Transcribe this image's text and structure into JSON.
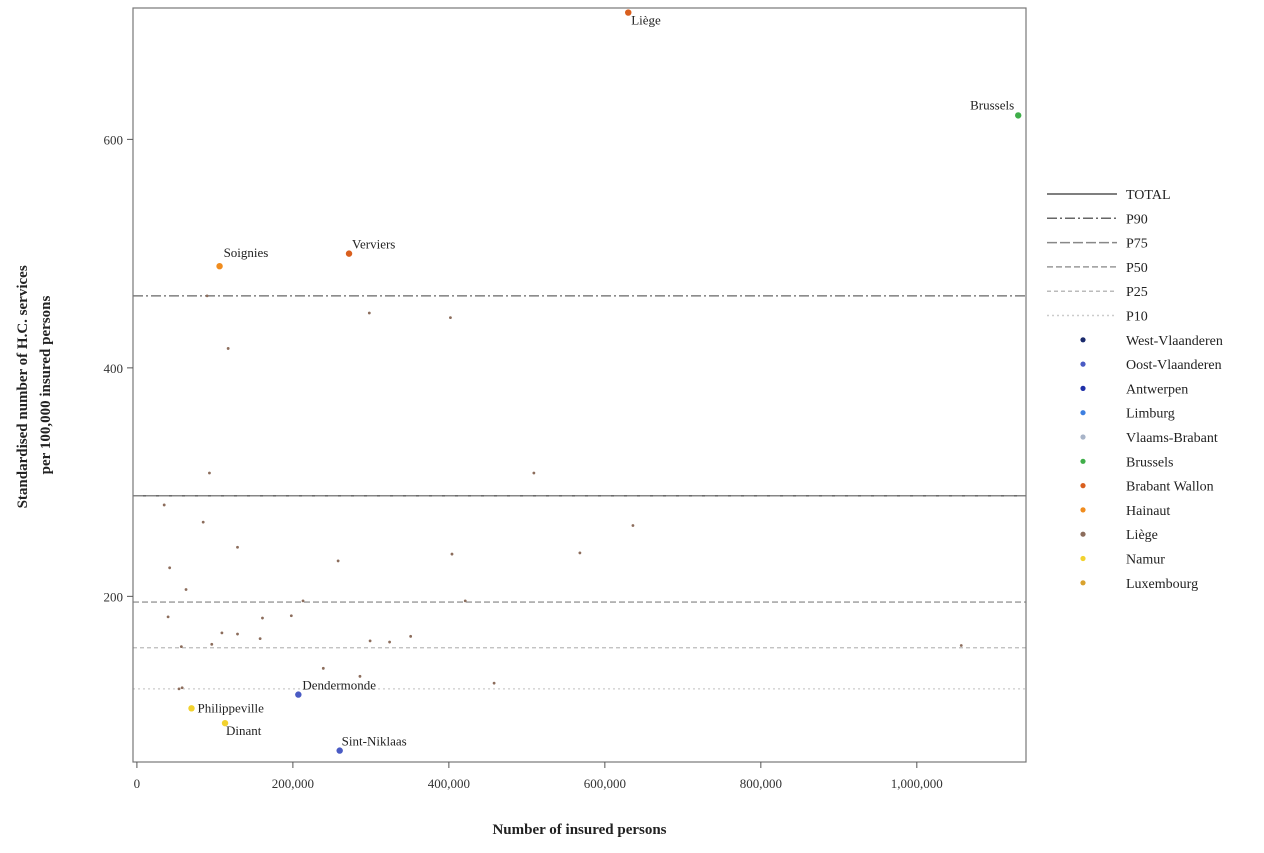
{
  "chart_data": {
    "type": "scatter",
    "title": "",
    "xlabel": "Number of insured persons",
    "ylabel_lines": [
      "Standardised number of H.C. services",
      "per 100,000 insured persons"
    ],
    "xlim": [
      -5000,
      1140000
    ],
    "ylim": [
      55,
      715
    ],
    "x_ticks": [
      {
        "value": 0,
        "label": "0"
      },
      {
        "value": 200000,
        "label": "200,000"
      },
      {
        "value": 400000,
        "label": "400,000"
      },
      {
        "value": 600000,
        "label": "600,000"
      },
      {
        "value": 800000,
        "label": "800,000"
      },
      {
        "value": 1000000,
        "label": "1,000,000"
      }
    ],
    "y_ticks": [
      {
        "value": 200,
        "label": "200"
      },
      {
        "value": 400,
        "label": "400"
      },
      {
        "value": 600,
        "label": "600"
      }
    ],
    "grid": false,
    "legend_position": "right",
    "reference_lines": [
      {
        "name": "TOTAL",
        "value": 288,
        "color": "#555555",
        "dash": ""
      },
      {
        "name": "P90",
        "value": 463,
        "color": "#666666",
        "dash": "10,3,2,3"
      },
      {
        "name": "P75",
        "value": 288,
        "color": "#888888",
        "dash": "10,3"
      },
      {
        "name": "P50",
        "value": 195,
        "color": "#999999",
        "dash": "6,3"
      },
      {
        "name": "P25",
        "value": 155,
        "color": "#bbbbbb",
        "dash": "4,3"
      },
      {
        "name": "P10",
        "value": 119,
        "color": "#cccccc",
        "dash": "2,3"
      }
    ],
    "series": [
      {
        "name": "West-Vlaanderen",
        "color": "#1a2a6c",
        "points": []
      },
      {
        "name": "Oost-Vlaanderen",
        "color": "#4a5bc4",
        "points": [
          {
            "x": 207000,
            "y": 114,
            "label": "Dendermonde"
          },
          {
            "x": 260000,
            "y": 65,
            "label": "Sint-Niklaas"
          }
        ]
      },
      {
        "name": "Antwerpen",
        "color": "#1f2fa8",
        "points": []
      },
      {
        "name": "Limburg",
        "color": "#3d7fe0",
        "points": []
      },
      {
        "name": "Vlaams-Brabant",
        "color": "#a8b4c8",
        "points": []
      },
      {
        "name": "Brussels",
        "color": "#3fae49",
        "points": [
          {
            "x": 1130000,
            "y": 621,
            "label": "Brussels"
          }
        ]
      },
      {
        "name": "Brabant Wallon",
        "color": "#d95f1e",
        "points": [
          {
            "x": 630000,
            "y": 711,
            "label": "Liège"
          },
          {
            "x": 272000,
            "y": 500,
            "label": "Verviers"
          }
        ]
      },
      {
        "name": "Hainaut",
        "color": "#f08c1e",
        "points": [
          {
            "x": 106000,
            "y": 489,
            "label": "Soignies"
          }
        ]
      },
      {
        "name": "Liège",
        "color": "#8c6d5c",
        "points": [
          {
            "x": 90000,
            "y": 463
          },
          {
            "x": 298000,
            "y": 448
          },
          {
            "x": 402000,
            "y": 444
          },
          {
            "x": 117000,
            "y": 417
          },
          {
            "x": 93000,
            "y": 308
          },
          {
            "x": 509000,
            "y": 308
          },
          {
            "x": 35000,
            "y": 280
          },
          {
            "x": 85000,
            "y": 265
          },
          {
            "x": 636000,
            "y": 262
          },
          {
            "x": 129000,
            "y": 243
          },
          {
            "x": 568000,
            "y": 238
          },
          {
            "x": 404000,
            "y": 237
          },
          {
            "x": 258000,
            "y": 231
          },
          {
            "x": 42000,
            "y": 225
          },
          {
            "x": 63000,
            "y": 206
          },
          {
            "x": 213000,
            "y": 196
          },
          {
            "x": 421000,
            "y": 196
          },
          {
            "x": 40000,
            "y": 182
          },
          {
            "x": 198000,
            "y": 183
          },
          {
            "x": 161000,
            "y": 181
          },
          {
            "x": 109000,
            "y": 168
          },
          {
            "x": 129000,
            "y": 167
          },
          {
            "x": 351000,
            "y": 165
          },
          {
            "x": 158000,
            "y": 163
          },
          {
            "x": 299000,
            "y": 161
          },
          {
            "x": 324000,
            "y": 160
          },
          {
            "x": 96000,
            "y": 158
          },
          {
            "x": 57000,
            "y": 156
          },
          {
            "x": 1057000,
            "y": 157
          },
          {
            "x": 239000,
            "y": 137
          },
          {
            "x": 286000,
            "y": 130
          },
          {
            "x": 458000,
            "y": 124
          },
          {
            "x": 58000,
            "y": 120
          },
          {
            "x": 54000,
            "y": 119
          }
        ]
      },
      {
        "name": "Namur",
        "color": "#f2d22e",
        "points": [
          {
            "x": 70000,
            "y": 102,
            "label": "Philippeville"
          },
          {
            "x": 113000,
            "y": 89,
            "label": "Dinant"
          }
        ]
      },
      {
        "name": "Luxembourg",
        "color": "#d9a22e",
        "points": []
      }
    ]
  }
}
